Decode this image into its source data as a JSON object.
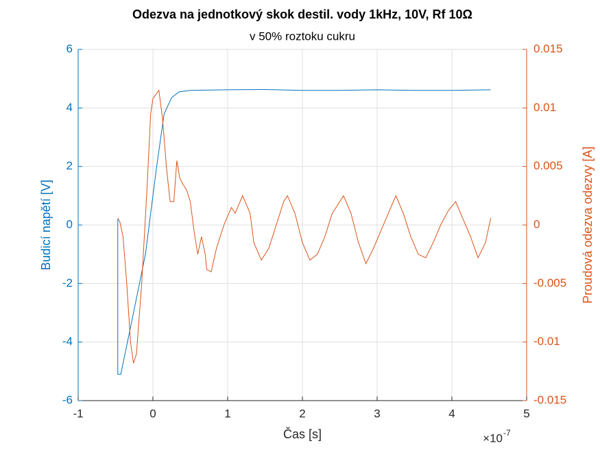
{
  "chart_data": {
    "type": "line",
    "title": "Odezva na jednotkový skok destil. vody 1kHz, 10V, Rf 10Ω",
    "subtitle": "v 50% roztoku cukru",
    "xlabel": "Čas [s]",
    "ylabel": "Budicí napětí [V]",
    "y2label": "Proudová odezva odezvy [A]",
    "x_multiplier": "×10",
    "x_exponent": "-7",
    "xlim": [
      -1,
      5
    ],
    "xticks": [
      -1,
      0,
      1,
      2,
      3,
      4,
      5
    ],
    "ylim": [
      -6,
      6
    ],
    "yticks": [
      -6,
      -4,
      -2,
      0,
      2,
      4,
      6
    ],
    "y2lim": [
      -0.015,
      0.015
    ],
    "y2ticks": [
      -0.015,
      -0.01,
      -0.005,
      0,
      0.005,
      0.01,
      0.015
    ],
    "grid": true,
    "y_color": "#0072bd",
    "y2_color": "#d95319",
    "series": [
      {
        "color": "#0072bd",
        "axis": "y",
        "x": [
          -0.47,
          -0.47,
          -0.43,
          -0.3,
          -0.1,
          0.05,
          0.15,
          0.25,
          0.35,
          0.5,
          1.0,
          1.5,
          2.0,
          2.5,
          3.0,
          3.5,
          4.0,
          4.52
        ],
        "values": [
          0.2,
          -5.1,
          -5.1,
          -3.5,
          -1.0,
          2.0,
          3.8,
          4.35,
          4.55,
          4.6,
          4.62,
          4.63,
          4.6,
          4.6,
          4.62,
          4.6,
          4.6,
          4.62
        ]
      },
      {
        "color": "#d95319",
        "axis": "y2",
        "x": [
          -0.47,
          -0.44,
          -0.4,
          -0.35,
          -0.3,
          -0.26,
          -0.22,
          -0.15,
          -0.08,
          -0.03,
          0.0,
          0.08,
          0.13,
          0.18,
          0.23,
          0.28,
          0.32,
          0.36,
          0.4,
          0.45,
          0.5,
          0.55,
          0.6,
          0.65,
          0.7,
          0.72,
          0.78,
          0.85,
          0.95,
          1.05,
          1.1,
          1.2,
          1.3,
          1.35,
          1.45,
          1.55,
          1.65,
          1.75,
          1.8,
          1.9,
          2.0,
          2.1,
          2.2,
          2.3,
          2.4,
          2.5,
          2.55,
          2.65,
          2.75,
          2.85,
          2.95,
          3.05,
          3.15,
          3.25,
          3.35,
          3.45,
          3.55,
          3.65,
          3.75,
          3.85,
          3.95,
          4.05,
          4.15,
          4.25,
          4.35,
          4.45,
          4.52
        ],
        "values": [
          0.0006,
          0.0002,
          -0.001,
          -0.005,
          -0.01,
          -0.0118,
          -0.011,
          -0.005,
          0.003,
          0.0095,
          0.0108,
          0.0115,
          0.009,
          0.005,
          0.002,
          0.002,
          0.0055,
          0.004,
          0.0035,
          0.003,
          0.002,
          -0.0005,
          -0.0025,
          -0.001,
          -0.0025,
          -0.0038,
          -0.004,
          -0.002,
          0.0,
          0.0015,
          0.001,
          0.0025,
          0.001,
          -0.0015,
          -0.003,
          -0.002,
          0.0,
          0.002,
          0.0025,
          0.001,
          -0.0015,
          -0.003,
          -0.0025,
          -0.001,
          0.001,
          0.002,
          0.0025,
          0.001,
          -0.0015,
          -0.0033,
          -0.002,
          -0.0005,
          0.001,
          0.0025,
          0.001,
          -0.001,
          -0.0025,
          -0.0028,
          -0.0015,
          0.0,
          0.0012,
          0.002,
          0.0005,
          -0.001,
          -0.0028,
          -0.0015,
          0.0006
        ]
      }
    ]
  }
}
